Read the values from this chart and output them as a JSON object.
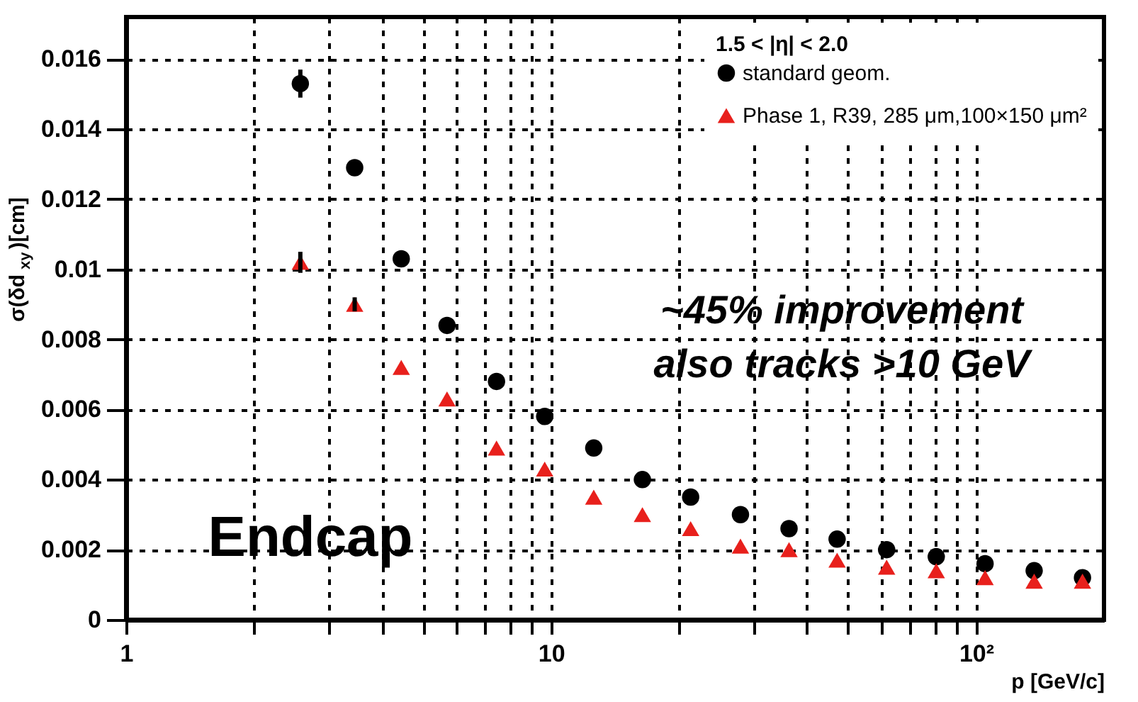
{
  "chart_data": {
    "type": "scatter",
    "ylabel": "σ(δd$_{xy}$)[cm]",
    "xlabel": "p [GeV/c]",
    "legend_title": "1.5 < |η| < 2.0",
    "x": [
      2.57,
      3.45,
      4.44,
      5.69,
      7.44,
      9.66,
      12.6,
      16.4,
      21.3,
      27.9,
      36.3,
      47.1,
      61.6,
      80.6,
      105,
      137,
      178
    ],
    "series": [
      {
        "name": "standard geom.",
        "color": "#000000",
        "marker": "circle",
        "values": [
          0.0153,
          0.0129,
          0.0103,
          0.0084,
          0.0068,
          0.0058,
          0.0049,
          0.004,
          0.0035,
          0.003,
          0.0026,
          0.0023,
          0.002,
          0.0018,
          0.0016,
          0.0014,
          0.0012
        ],
        "errors": [
          0.0004,
          0.0002,
          0.0002,
          null,
          null,
          null,
          null,
          null,
          null,
          null,
          null,
          null,
          null,
          null,
          null,
          null,
          null
        ]
      },
      {
        "name": "Phase 1, R39, 285 μm,100×150 μm²",
        "color": "#e8201c",
        "marker": "triangle",
        "values": [
          0.0102,
          0.009,
          0.0072,
          0.0063,
          0.0049,
          0.0043,
          0.0035,
          0.003,
          0.0026,
          0.0021,
          0.002,
          0.0017,
          0.0015,
          0.0014,
          0.0012,
          0.0011,
          0.0011
        ],
        "errors": [
          0.0003,
          0.0002,
          null,
          null,
          null,
          null,
          null,
          null,
          null,
          null,
          null,
          null,
          null,
          null,
          null,
          null,
          null
        ]
      }
    ],
    "log": "x",
    "xlim": [
      1,
      200
    ],
    "ylim": [
      0,
      0.0172
    ],
    "xticks": [
      1,
      {
        "value": 2,
        "label": null
      },
      {
        "value": 3,
        "label": null
      },
      {
        "value": 4,
        "label": null
      },
      {
        "value": 5,
        "label": null
      },
      {
        "value": 6,
        "label": null
      },
      {
        "value": 7,
        "label": null
      },
      {
        "value": 8,
        "label": null
      },
      {
        "value": 9,
        "label": null
      },
      10,
      {
        "value": 20,
        "label": null
      },
      {
        "value": 30,
        "label": null
      },
      {
        "value": 40,
        "label": null
      },
      {
        "value": 50,
        "label": null
      },
      {
        "value": 60,
        "label": null
      },
      {
        "value": 70,
        "label": null
      },
      {
        "value": 80,
        "label": null
      },
      {
        "value": 90,
        "label": null
      },
      {
        "value": 100,
        "label": "10²"
      }
    ],
    "yticks": [
      0,
      0.002,
      0.004,
      0.006,
      0.008,
      0.01,
      0.012,
      0.014,
      0.016
    ],
    "grid": true,
    "legend": "top right",
    "annotations": [
      "~45% improvement",
      "also tracks >10 GeV",
      "Endcap"
    ]
  }
}
